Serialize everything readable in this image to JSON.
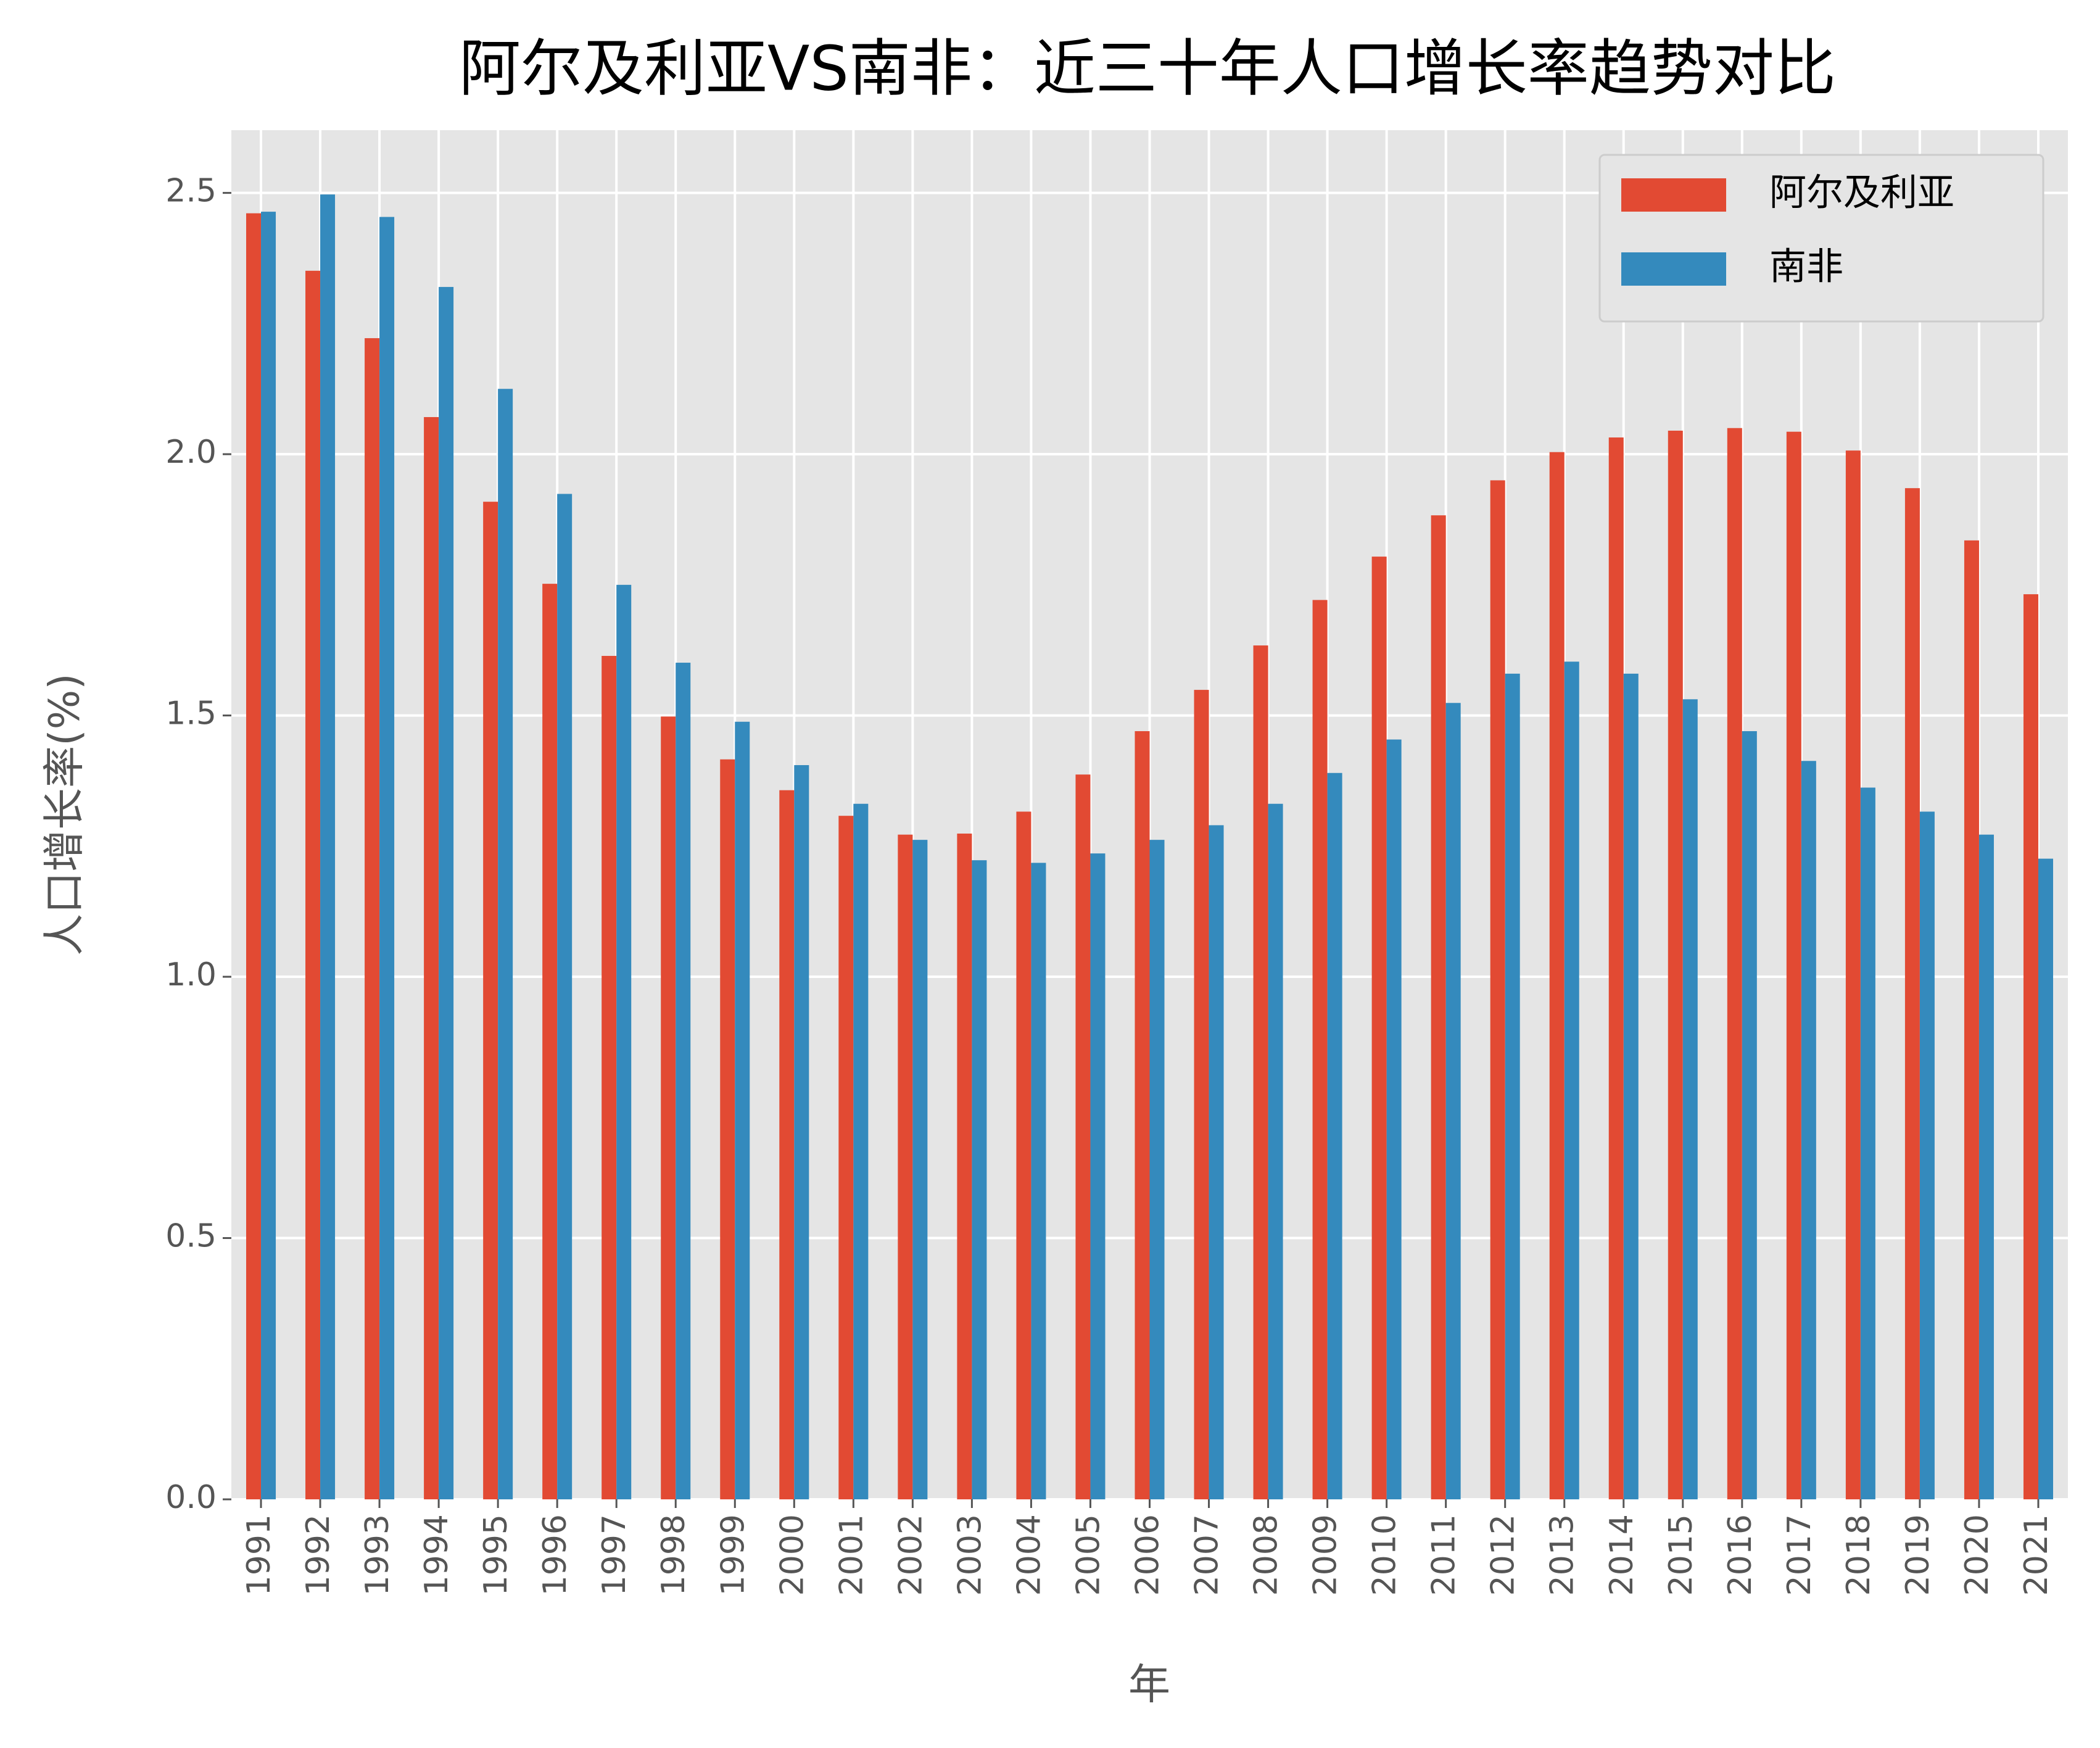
{
  "chart_data": {
    "type": "bar",
    "title": "阿尔及利亚VS南非：近三十年人口增长率趋势对比",
    "x_label": "年",
    "y_label": "人口增长率(%)",
    "categories": [
      "1991",
      "1992",
      "1993",
      "1994",
      "1995",
      "1996",
      "1997",
      "1998",
      "1999",
      "2000",
      "2001",
      "2002",
      "2003",
      "2004",
      "2005",
      "2006",
      "2007",
      "2008",
      "2009",
      "2010",
      "2011",
      "2012",
      "2013",
      "2014",
      "2015",
      "2016",
      "2017",
      "2018",
      "2019",
      "2020",
      "2021"
    ],
    "series": [
      {
        "name": "阿尔及利亚",
        "color": "#e24a33",
        "values": [
          2.461,
          2.351,
          2.222,
          2.071,
          1.909,
          1.752,
          1.614,
          1.498,
          1.416,
          1.357,
          1.308,
          1.272,
          1.274,
          1.316,
          1.387,
          1.47,
          1.549,
          1.634,
          1.721,
          1.804,
          1.883,
          1.95,
          2.004,
          2.032,
          2.045,
          2.05,
          2.043,
          2.007,
          1.935,
          1.835,
          1.732
        ]
      },
      {
        "name": "南非",
        "color": "#348abd",
        "values": [
          2.464,
          2.497,
          2.454,
          2.32,
          2.125,
          1.924,
          1.75,
          1.601,
          1.488,
          1.405,
          1.331,
          1.262,
          1.223,
          1.218,
          1.236,
          1.262,
          1.29,
          1.331,
          1.39,
          1.454,
          1.524,
          1.58,
          1.603,
          1.58,
          1.531,
          1.47,
          1.413,
          1.362,
          1.316,
          1.272,
          1.226
        ]
      }
    ],
    "ylim": [
      0,
      2.62
    ],
    "yticks": [
      {
        "value": 0,
        "label": "0.0"
      },
      0.5,
      {
        "value": 1,
        "label": "1.0"
      },
      1.5,
      {
        "value": 2,
        "label": "2.0"
      },
      2.5
    ],
    "grid": true,
    "legend": "upper right"
  }
}
